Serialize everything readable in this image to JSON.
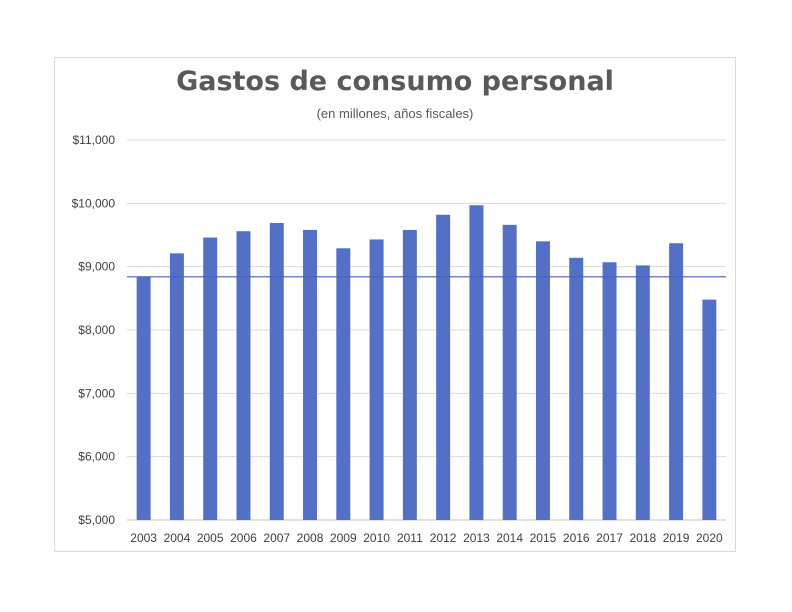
{
  "chart_data": {
    "type": "bar",
    "title": "Gastos de consumo personal",
    "subtitle": "(en millones, años fiscales)",
    "categories": [
      "2003",
      "2004",
      "2005",
      "2006",
      "2007",
      "2008",
      "2009",
      "2010",
      "2011",
      "2012",
      "2013",
      "2014",
      "2015",
      "2016",
      "2017",
      "2018",
      "2019",
      "2020"
    ],
    "values": [
      8840,
      9210,
      9460,
      9560,
      9690,
      9580,
      9290,
      9430,
      9580,
      9820,
      9970,
      9660,
      9400,
      9140,
      9070,
      9020,
      9370,
      8480
    ],
    "ylim": [
      5000,
      11000
    ],
    "yticks": [
      5000,
      6000,
      7000,
      8000,
      9000,
      10000,
      11000
    ],
    "ytick_labels": [
      "$5,000",
      "$6,000",
      "$7,000",
      "$8,000",
      "$9,000",
      "$10,000",
      "$11,000"
    ],
    "reference_line": 8840,
    "grid": true,
    "xlabel": "",
    "ylabel": "",
    "colors": {
      "bar": "#5470c6",
      "reference_line": "#4a5fb5",
      "grid": "#d9d9d9",
      "axis": "#bfbfbf",
      "text": "#404040"
    }
  }
}
